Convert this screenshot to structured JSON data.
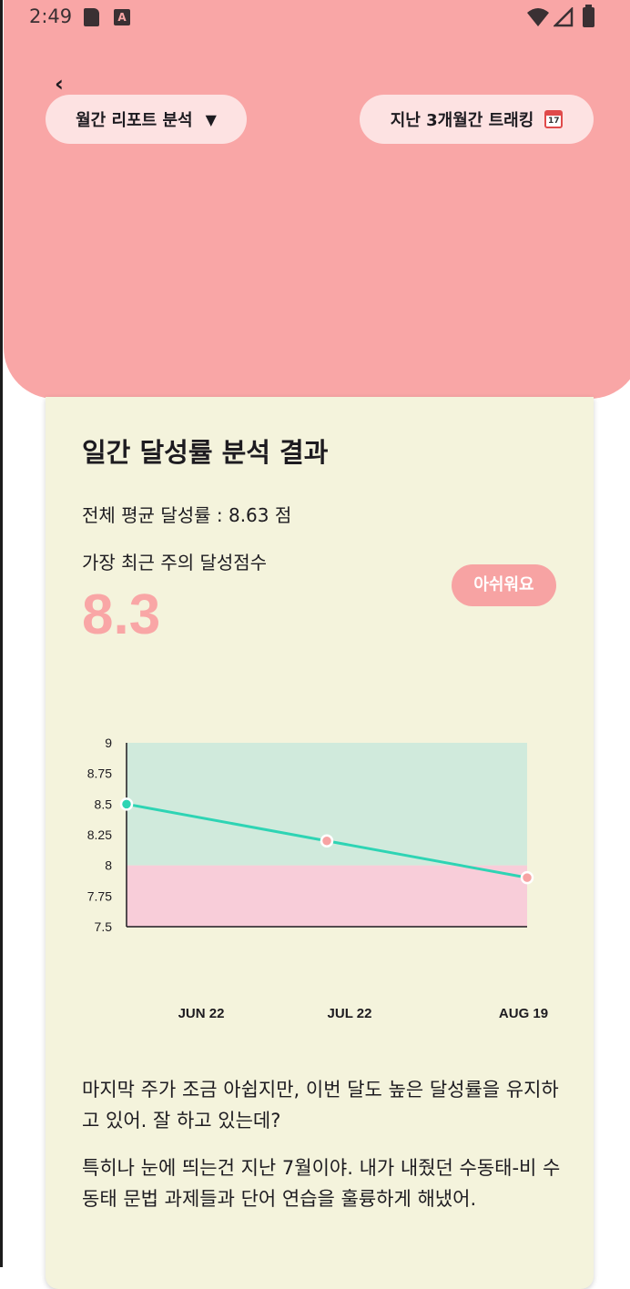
{
  "status_bar": {
    "time": "2:49",
    "icons": [
      "sd-card-icon",
      "a-notification-icon",
      "wifi-icon",
      "signal-icon",
      "battery-icon"
    ]
  },
  "header": {
    "back_icon": "chevron-left-icon",
    "report_dropdown": {
      "label": "월간 리포트 분석",
      "caret": "▼"
    },
    "range_button": {
      "label": "지난 3개월간 트래킹",
      "icon": "calendar-icon",
      "icon_text": "17"
    },
    "colors": {
      "background": "#f9a6a6",
      "pill": "#fde2e2"
    }
  },
  "card": {
    "title": "일간 달성률 분석 결과",
    "average_text": "전체 평균 달성률 : 8.63 점",
    "recent_label": "가장 최근 주의 달성점수",
    "recent_score": "8.3",
    "badge": "아쉬워요",
    "message_1": "마지막 주가 조금 아쉽지만, 이번 달도 높은 달성률을 유지하고 있어. 잘 하고 있는데?",
    "message_2": "특히나 눈에 띄는건 지난 7월이야. 내가 내줬던 수동태-비 수동태 문법 과제들과 단어 연습을 훌륭하게 해냈어."
  },
  "chart_data": {
    "type": "line",
    "categories": [
      "JUN 22",
      "JUL 22",
      "AUG 19"
    ],
    "series": [
      {
        "values": [
          8.5,
          8.2,
          7.9
        ],
        "color": "#2ed4b4"
      }
    ],
    "y_ticks": [
      "9",
      "8.75",
      "8.5",
      "8.25",
      "8",
      "7.75",
      "7.5"
    ],
    "ylim": [
      7.5,
      9
    ],
    "bands": [
      {
        "from": 8,
        "to": 9,
        "color": "#d0eadc"
      },
      {
        "from": 7.5,
        "to": 8,
        "color": "#f8cdd9"
      }
    ],
    "point_colors": [
      "#2ed4b4",
      "#f7a3a3",
      "#f7a3a3"
    ],
    "title": "",
    "xlabel": "",
    "ylabel": "",
    "grid": false
  }
}
